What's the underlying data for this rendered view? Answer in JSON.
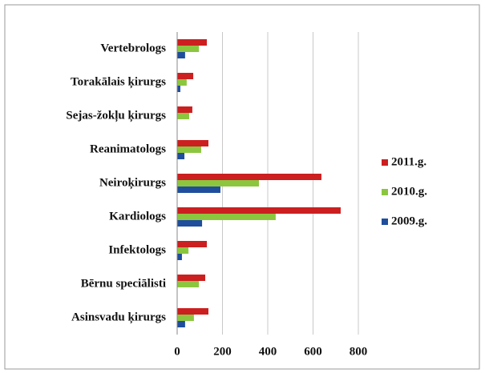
{
  "chart_data": {
    "type": "bar",
    "orientation": "horizontal",
    "categories": [
      "Vertebrologs",
      "Torakālais ķirurgs",
      "Sejas-žokļu ķirurgs",
      "Reanimatologs",
      "Neiroķirurgs",
      "Kardiologs",
      "Infektologs",
      "Bērnu speciālisti",
      "Asinsvadu ķirurgs"
    ],
    "series": [
      {
        "name": "2011.g.",
        "color": "#cc1f1f",
        "values": [
          131,
          71,
          67,
          138,
          637,
          722,
          131,
          124,
          138
        ]
      },
      {
        "name": "2010.g.",
        "color": "#8cc63f",
        "values": [
          96,
          42,
          53,
          106,
          361,
          435,
          50,
          96,
          74
        ]
      },
      {
        "name": "2009.g.",
        "color": "#1f4e9c",
        "values": [
          35,
          14,
          0,
          32,
          191,
          110,
          21,
          0,
          35
        ]
      }
    ],
    "xlim": [
      0,
      800
    ],
    "xticks": [
      0,
      200,
      400,
      600,
      800
    ],
    "grid": true,
    "legend": "right"
  }
}
